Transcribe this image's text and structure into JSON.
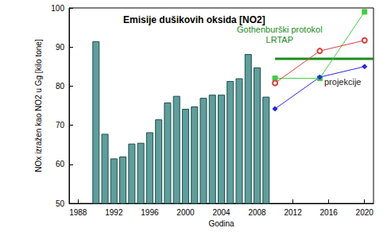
{
  "chart_data": {
    "type": "bar",
    "title": "Emisije dušikovih oksida [NO2]",
    "x_label": "Godina",
    "y_label": "NOx izražen kao NO2 u Gg [kilo tone]",
    "xlim": [
      1987,
      2021
    ],
    "xticks": [
      1988,
      1992,
      1996,
      2000,
      2004,
      2008,
      2012,
      2016,
      2020
    ],
    "ylim": [
      50,
      100
    ],
    "yticks": [
      50,
      60,
      70,
      80,
      90,
      100
    ],
    "grid": false,
    "annotations": [
      {
        "text": "projekcije"
      }
    ],
    "series": [
      {
        "type": "bar",
        "color": "#5e9e9b",
        "x": [
          1990,
          1991,
          1992,
          1993,
          1994,
          1995,
          1996,
          1997,
          1998,
          1999,
          2000,
          2001,
          2002,
          2003,
          2004,
          2005,
          2006,
          2007,
          2008,
          2009
        ],
        "values": [
          91.5,
          67.8,
          61.5,
          62,
          65.3,
          65.5,
          68.2,
          71.5,
          75.8,
          77.5,
          74.2,
          74.8,
          77,
          77.8,
          77.8,
          81.3,
          82,
          88.2,
          84.8,
          77.3
        ]
      },
      {
        "type": "line",
        "name": "Gothenburški protokol\nLRTAP",
        "color": "#1c8c1c",
        "x": [
          2010,
          2021
        ],
        "values": [
          87,
          87
        ],
        "marker": "none",
        "line_style": "thick"
      },
      {
        "type": "line",
        "color": "#3fcf3f",
        "x": [
          2010,
          2015,
          2020
        ],
        "values": [
          82,
          82,
          99
        ],
        "marker": "square",
        "line_style": "solid"
      },
      {
        "type": "line",
        "color": "#e03c3c",
        "x": [
          2010,
          2015,
          2020
        ],
        "values": [
          80.8,
          89,
          91.7
        ],
        "marker": "open_circle",
        "line_style": "solid"
      },
      {
        "type": "line",
        "color": "#2828e0",
        "x": [
          2010,
          2015,
          2020
        ],
        "values": [
          74.2,
          82.3,
          85
        ],
        "marker": "diamond",
        "line_style": "solid"
      }
    ]
  }
}
